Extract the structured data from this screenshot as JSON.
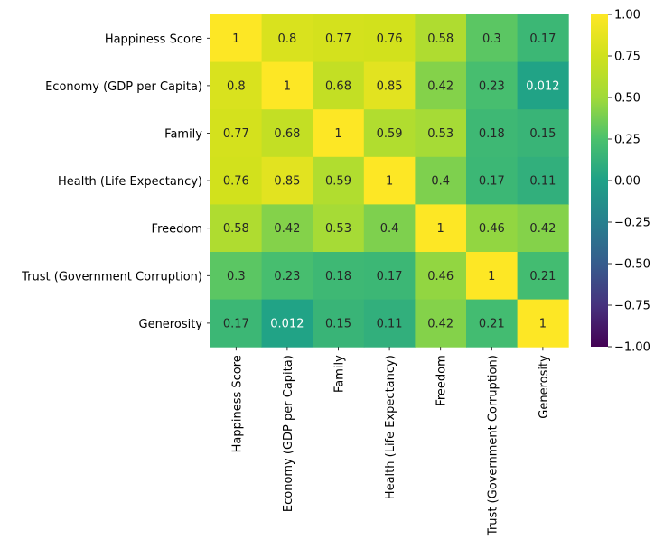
{
  "chart_data": {
    "type": "heatmap",
    "title": "",
    "xlabel": "",
    "ylabel": "",
    "categories": [
      "Happiness Score",
      "Economy (GDP per Capita)",
      "Family",
      "Health (Life Expectancy)",
      "Freedom",
      "Trust (Government Corruption)",
      "Generosity"
    ],
    "values": [
      [
        1,
        0.8,
        0.77,
        0.76,
        0.58,
        0.3,
        0.17
      ],
      [
        0.8,
        1,
        0.68,
        0.85,
        0.42,
        0.23,
        0.012
      ],
      [
        0.77,
        0.68,
        1,
        0.59,
        0.53,
        0.18,
        0.15
      ],
      [
        0.76,
        0.85,
        0.59,
        1,
        0.4,
        0.17,
        0.11
      ],
      [
        0.58,
        0.42,
        0.53,
        0.4,
        1,
        0.46,
        0.42
      ],
      [
        0.3,
        0.23,
        0.18,
        0.17,
        0.46,
        1,
        0.21
      ],
      [
        0.17,
        0.012,
        0.15,
        0.11,
        0.42,
        0.21,
        1
      ]
    ],
    "colormap": "viridis",
    "vmin": -1,
    "vmax": 1,
    "colorbar_ticks": [
      "1.00",
      "0.75",
      "0.50",
      "0.25",
      "0.00",
      "−0.25",
      "−0.50",
      "−0.75",
      "−1.00"
    ],
    "annotated": true,
    "grid": false,
    "legend": "colorbar-right"
  }
}
